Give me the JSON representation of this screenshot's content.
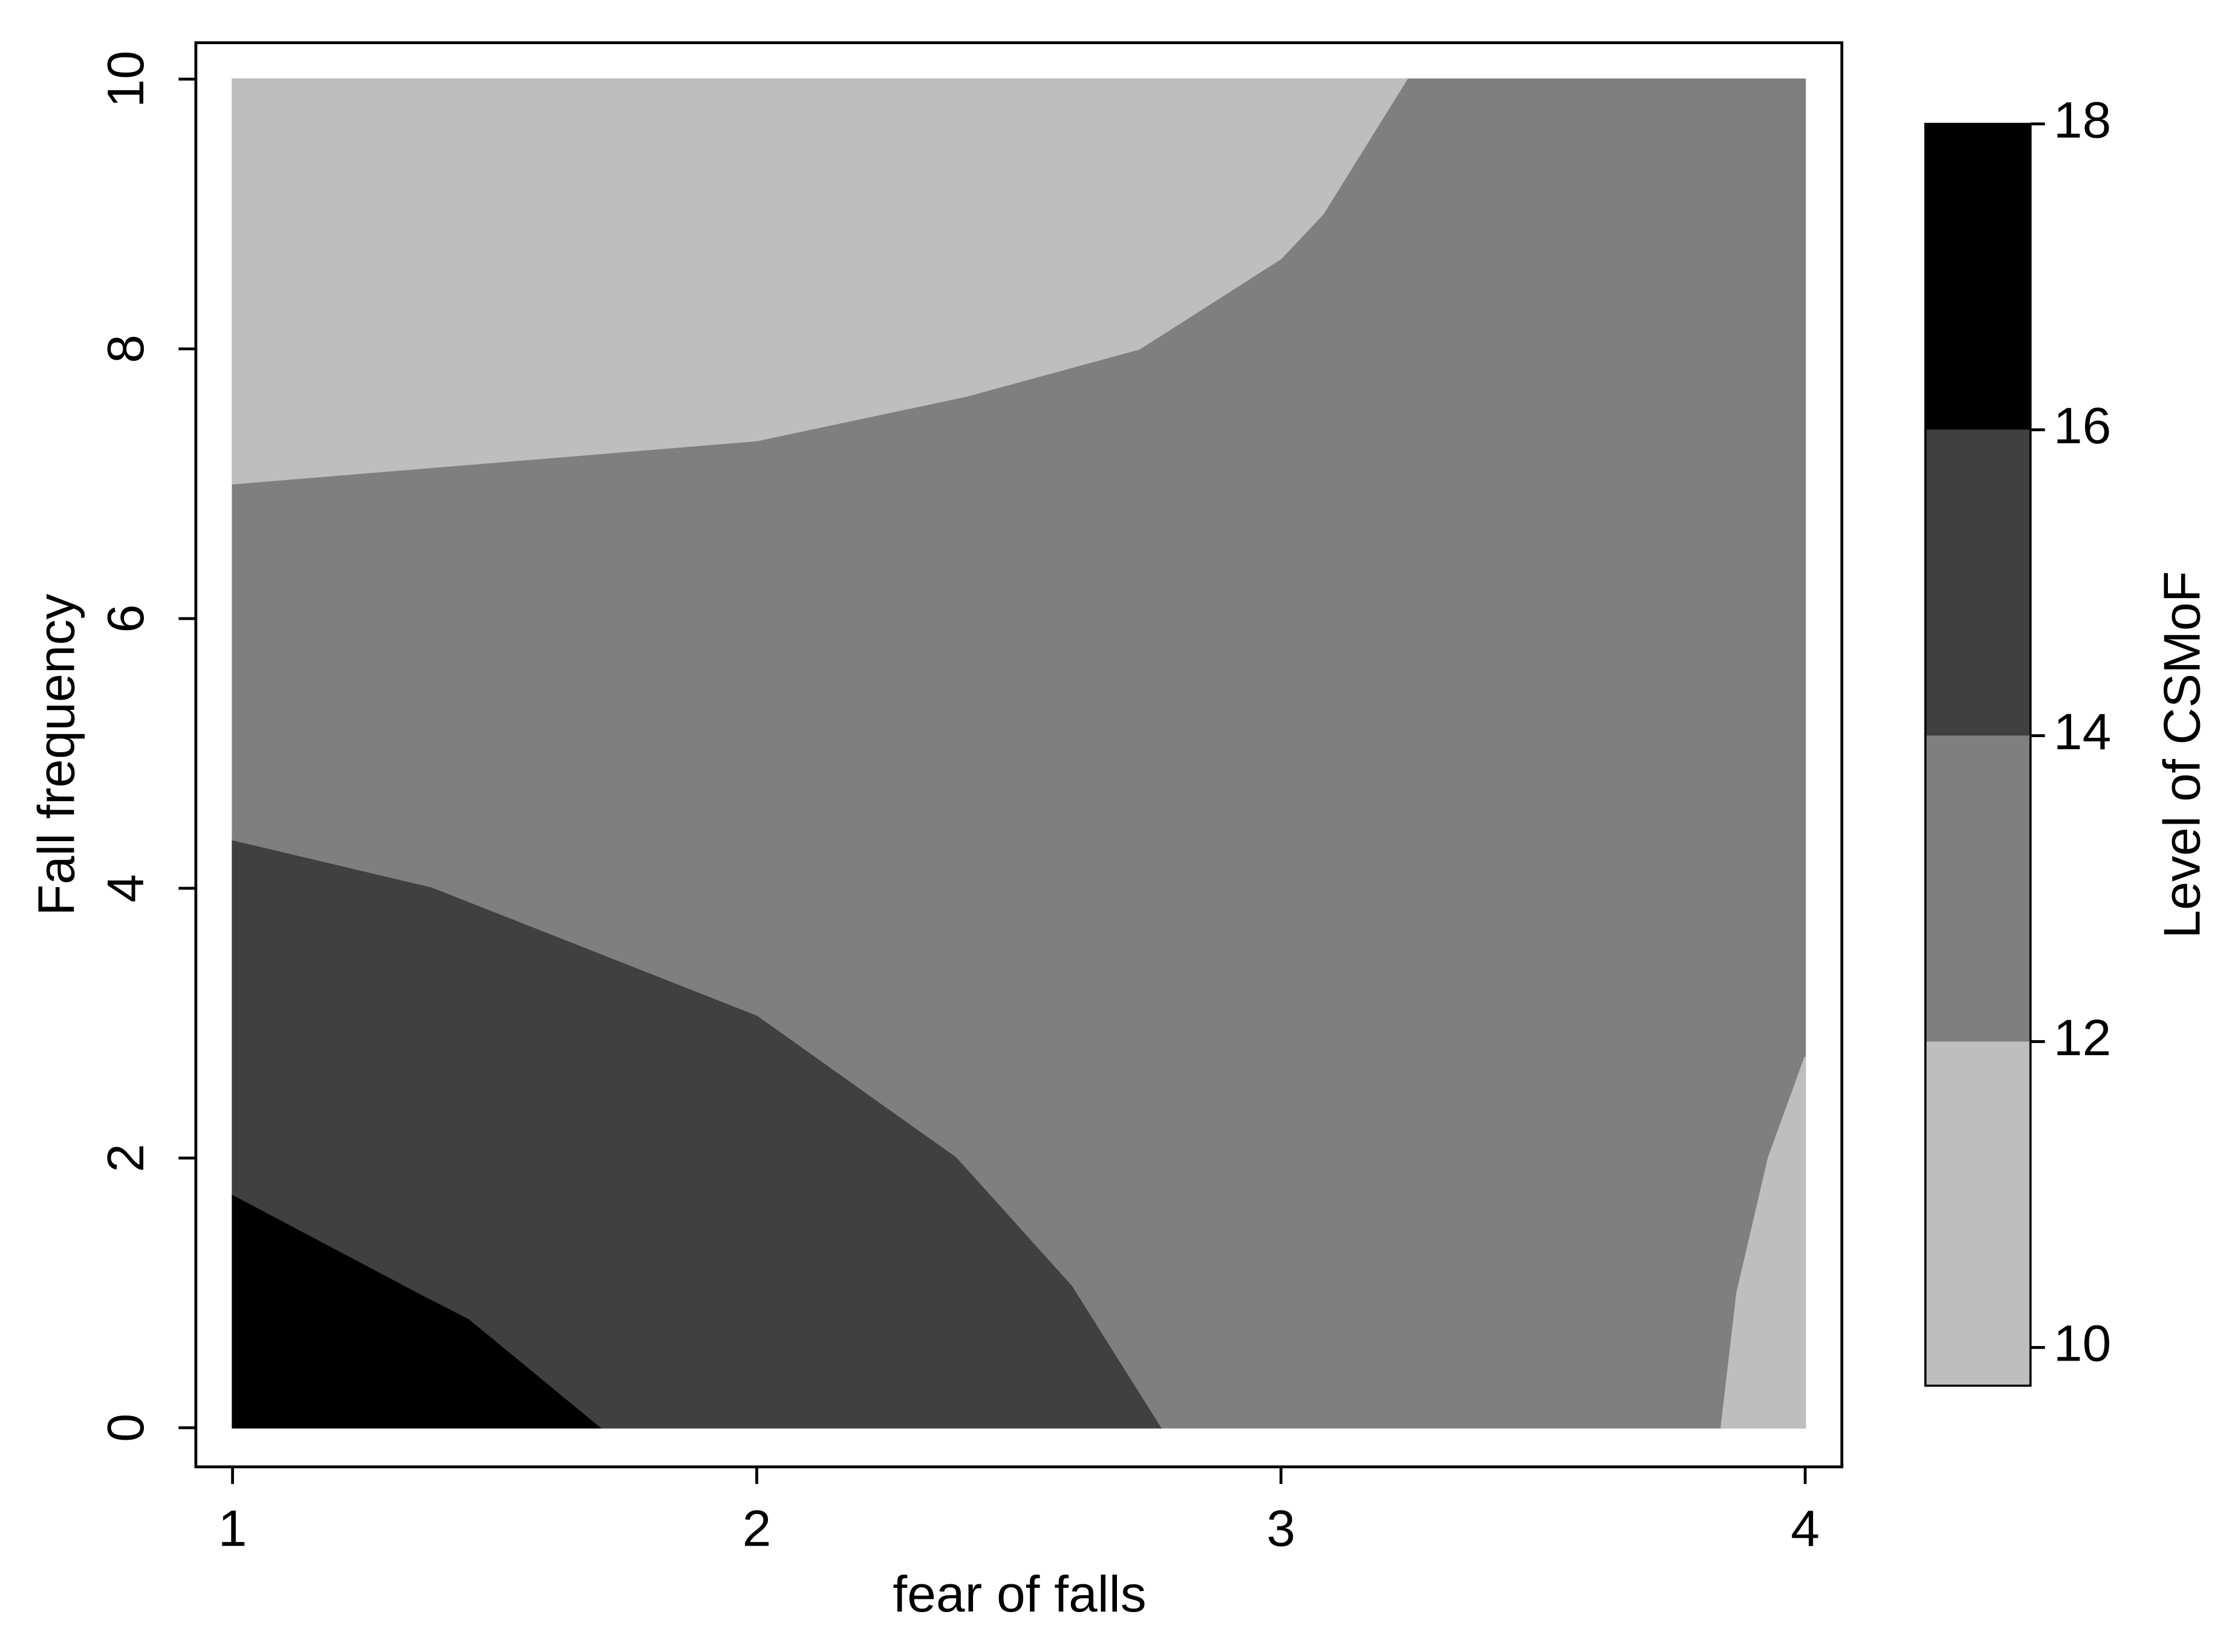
{
  "chart_data": {
    "type": "contour",
    "x_label": "fear of falls",
    "y_label": "Fall frequency",
    "xlim": [
      0.93,
      4.07
    ],
    "ylim": [
      -0.29,
      10.27
    ],
    "xticks": [
      1,
      2,
      3,
      4
    ],
    "yticks": [
      0,
      2,
      4,
      6,
      8,
      10
    ],
    "regions": [
      {
        "color": "#7f7f7f",
        "x": [
          1,
          4,
          4,
          1
        ],
        "y": [
          0,
          0,
          10,
          10
        ]
      },
      {
        "color": "#bebebe",
        "x": [
          1,
          3.24,
          3.08,
          3,
          2.73,
          2.4,
          2,
          1
        ],
        "y": [
          10,
          10,
          9,
          8.67,
          8,
          7.65,
          7.32,
          7
        ]
      },
      {
        "color": "#bebebe",
        "x": [
          3.84,
          4,
          4,
          3.93,
          3.87
        ],
        "y": [
          0,
          0,
          2.75,
          2,
          1
        ]
      },
      {
        "color": "#404040",
        "x": [
          1,
          1.38,
          2,
          2.38,
          2.6,
          2.77,
          1.7,
          1.45,
          1.35,
          1
        ],
        "y": [
          4.35,
          4,
          3.05,
          2,
          1.05,
          0,
          0,
          0.8,
          1,
          1.72
        ]
      },
      {
        "color": "#000000",
        "x": [
          1,
          1.7,
          1.45,
          1.35,
          1
        ],
        "y": [
          0,
          0,
          0.8,
          1,
          1.72
        ]
      }
    ],
    "colorbar": {
      "label": "Level of CSMoF",
      "lim": [
        9.75,
        18
      ],
      "ticks": [
        10,
        12,
        14,
        16,
        18
      ],
      "colors": [
        "#bebebe",
        "#7f7f7f",
        "#404040",
        "#000000"
      ]
    }
  }
}
